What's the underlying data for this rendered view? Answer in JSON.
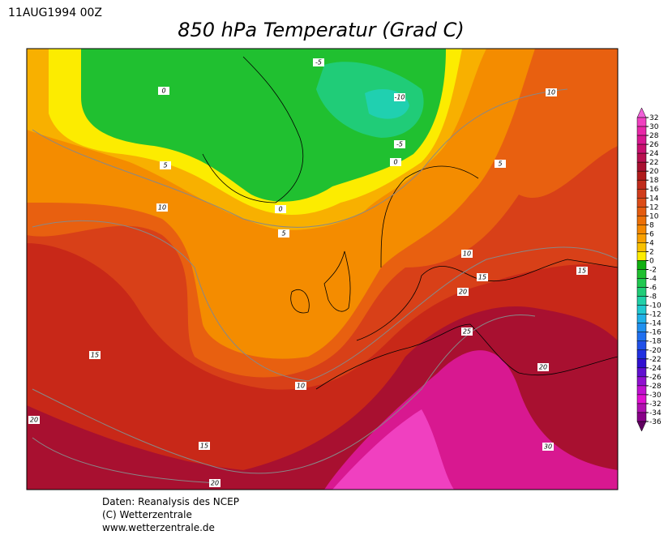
{
  "date": "11AUG1994 00Z",
  "title": "850 hPa Temperatur (Grad C)",
  "footer": [
    "Daten: Reanalysis des NCEP",
    "(C) Wetterzentrale",
    "www.wetterzentrale.de"
  ],
  "contour_labels": [
    -5,
    0,
    -10,
    -5,
    0,
    5,
    10,
    5,
    10,
    0,
    5,
    10,
    15,
    15,
    20,
    25,
    20,
    15,
    10,
    20,
    15,
    30,
    20
  ],
  "colorbar": {
    "levels": [
      32,
      30,
      28,
      26,
      24,
      22,
      20,
      18,
      16,
      14,
      12,
      10,
      8,
      6,
      4,
      2,
      0,
      -2,
      -4,
      -6,
      -8,
      -10,
      -12,
      -14,
      -16,
      -18,
      -20,
      -22,
      -24,
      -26,
      -28,
      -30,
      -32,
      -34,
      -36
    ],
    "colors": [
      "#f060d8",
      "#f040c0",
      "#e828a8",
      "#d81890",
      "#c81070",
      "#b81050",
      "#a81030",
      "#b01c1c",
      "#c02c1c",
      "#d03c1c",
      "#dc4c18",
      "#e45c10",
      "#ec7008",
      "#f48800",
      "#f8a000",
      "#f8c000",
      "#fcec00",
      "#10b010",
      "#20c030",
      "#20c850",
      "#20cc78",
      "#20d0a8",
      "#20c8d0",
      "#20b0e8",
      "#2090f0",
      "#2070f0",
      "#2050e8",
      "#2030e0",
      "#3010d0",
      "#6010d0",
      "#9010d0",
      "#c010d0",
      "#e010d0",
      "#b010b0",
      "#880088",
      "#600060"
    ]
  }
}
